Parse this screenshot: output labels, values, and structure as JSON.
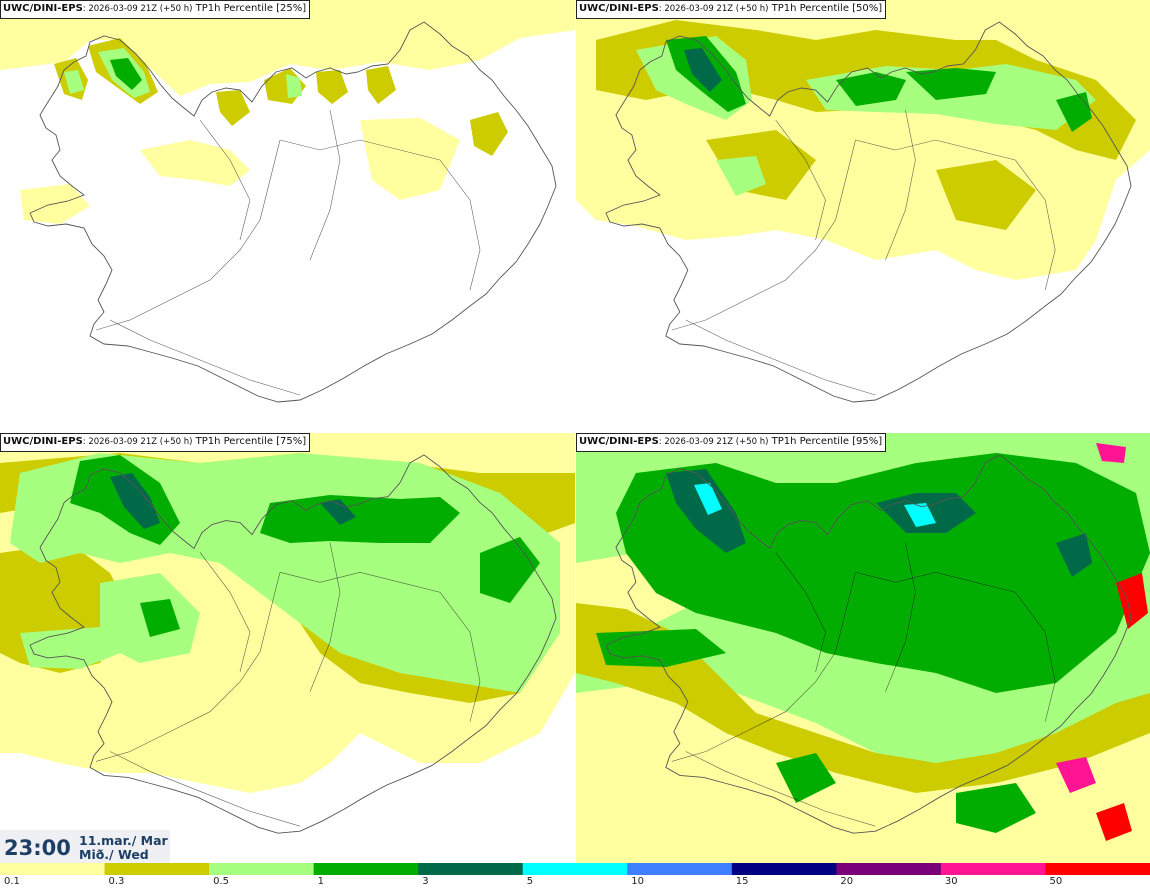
{
  "panels": [
    {
      "model": "UWC/DINI-EPS",
      "run": ": 2026-03-09 21Z (+50 h)",
      "field": " TP1h Percentile [25%]",
      "level": 25
    },
    {
      "model": "UWC/DINI-EPS",
      "run": ": 2026-03-09 21Z (+50 h)",
      "field": " TP1h Percentile [50%]",
      "level": 50
    },
    {
      "model": "UWC/DINI-EPS",
      "run": ": 2026-03-09 21Z (+50 h)",
      "field": " TP1h Percentile [75%]",
      "level": 75
    },
    {
      "model": "UWC/DINI-EPS",
      "run": ": 2026-03-09 21Z (+50 h)",
      "field": " TP1h Percentile [95%]",
      "level": 95
    }
  ],
  "valid_time": {
    "time": "23:00",
    "date_line1": "11.mar./ Mar",
    "date_line2": "Mið./ Wed"
  },
  "legend": {
    "ticks": [
      "0.1",
      "0.3",
      "0.5",
      "1",
      "3",
      "5",
      "10",
      "15",
      "20",
      "30",
      "50"
    ],
    "colors": [
      "#ffff9f",
      "#cccc00",
      "#a6ff7e",
      "#00ad00",
      "#006a48",
      "#00ffff",
      "#3f7fff",
      "#000080",
      "#7a007a",
      "#ff1493",
      "#ff0000"
    ]
  },
  "map_colors": {
    "land_outline": "#555555",
    "roads": "#222222"
  }
}
